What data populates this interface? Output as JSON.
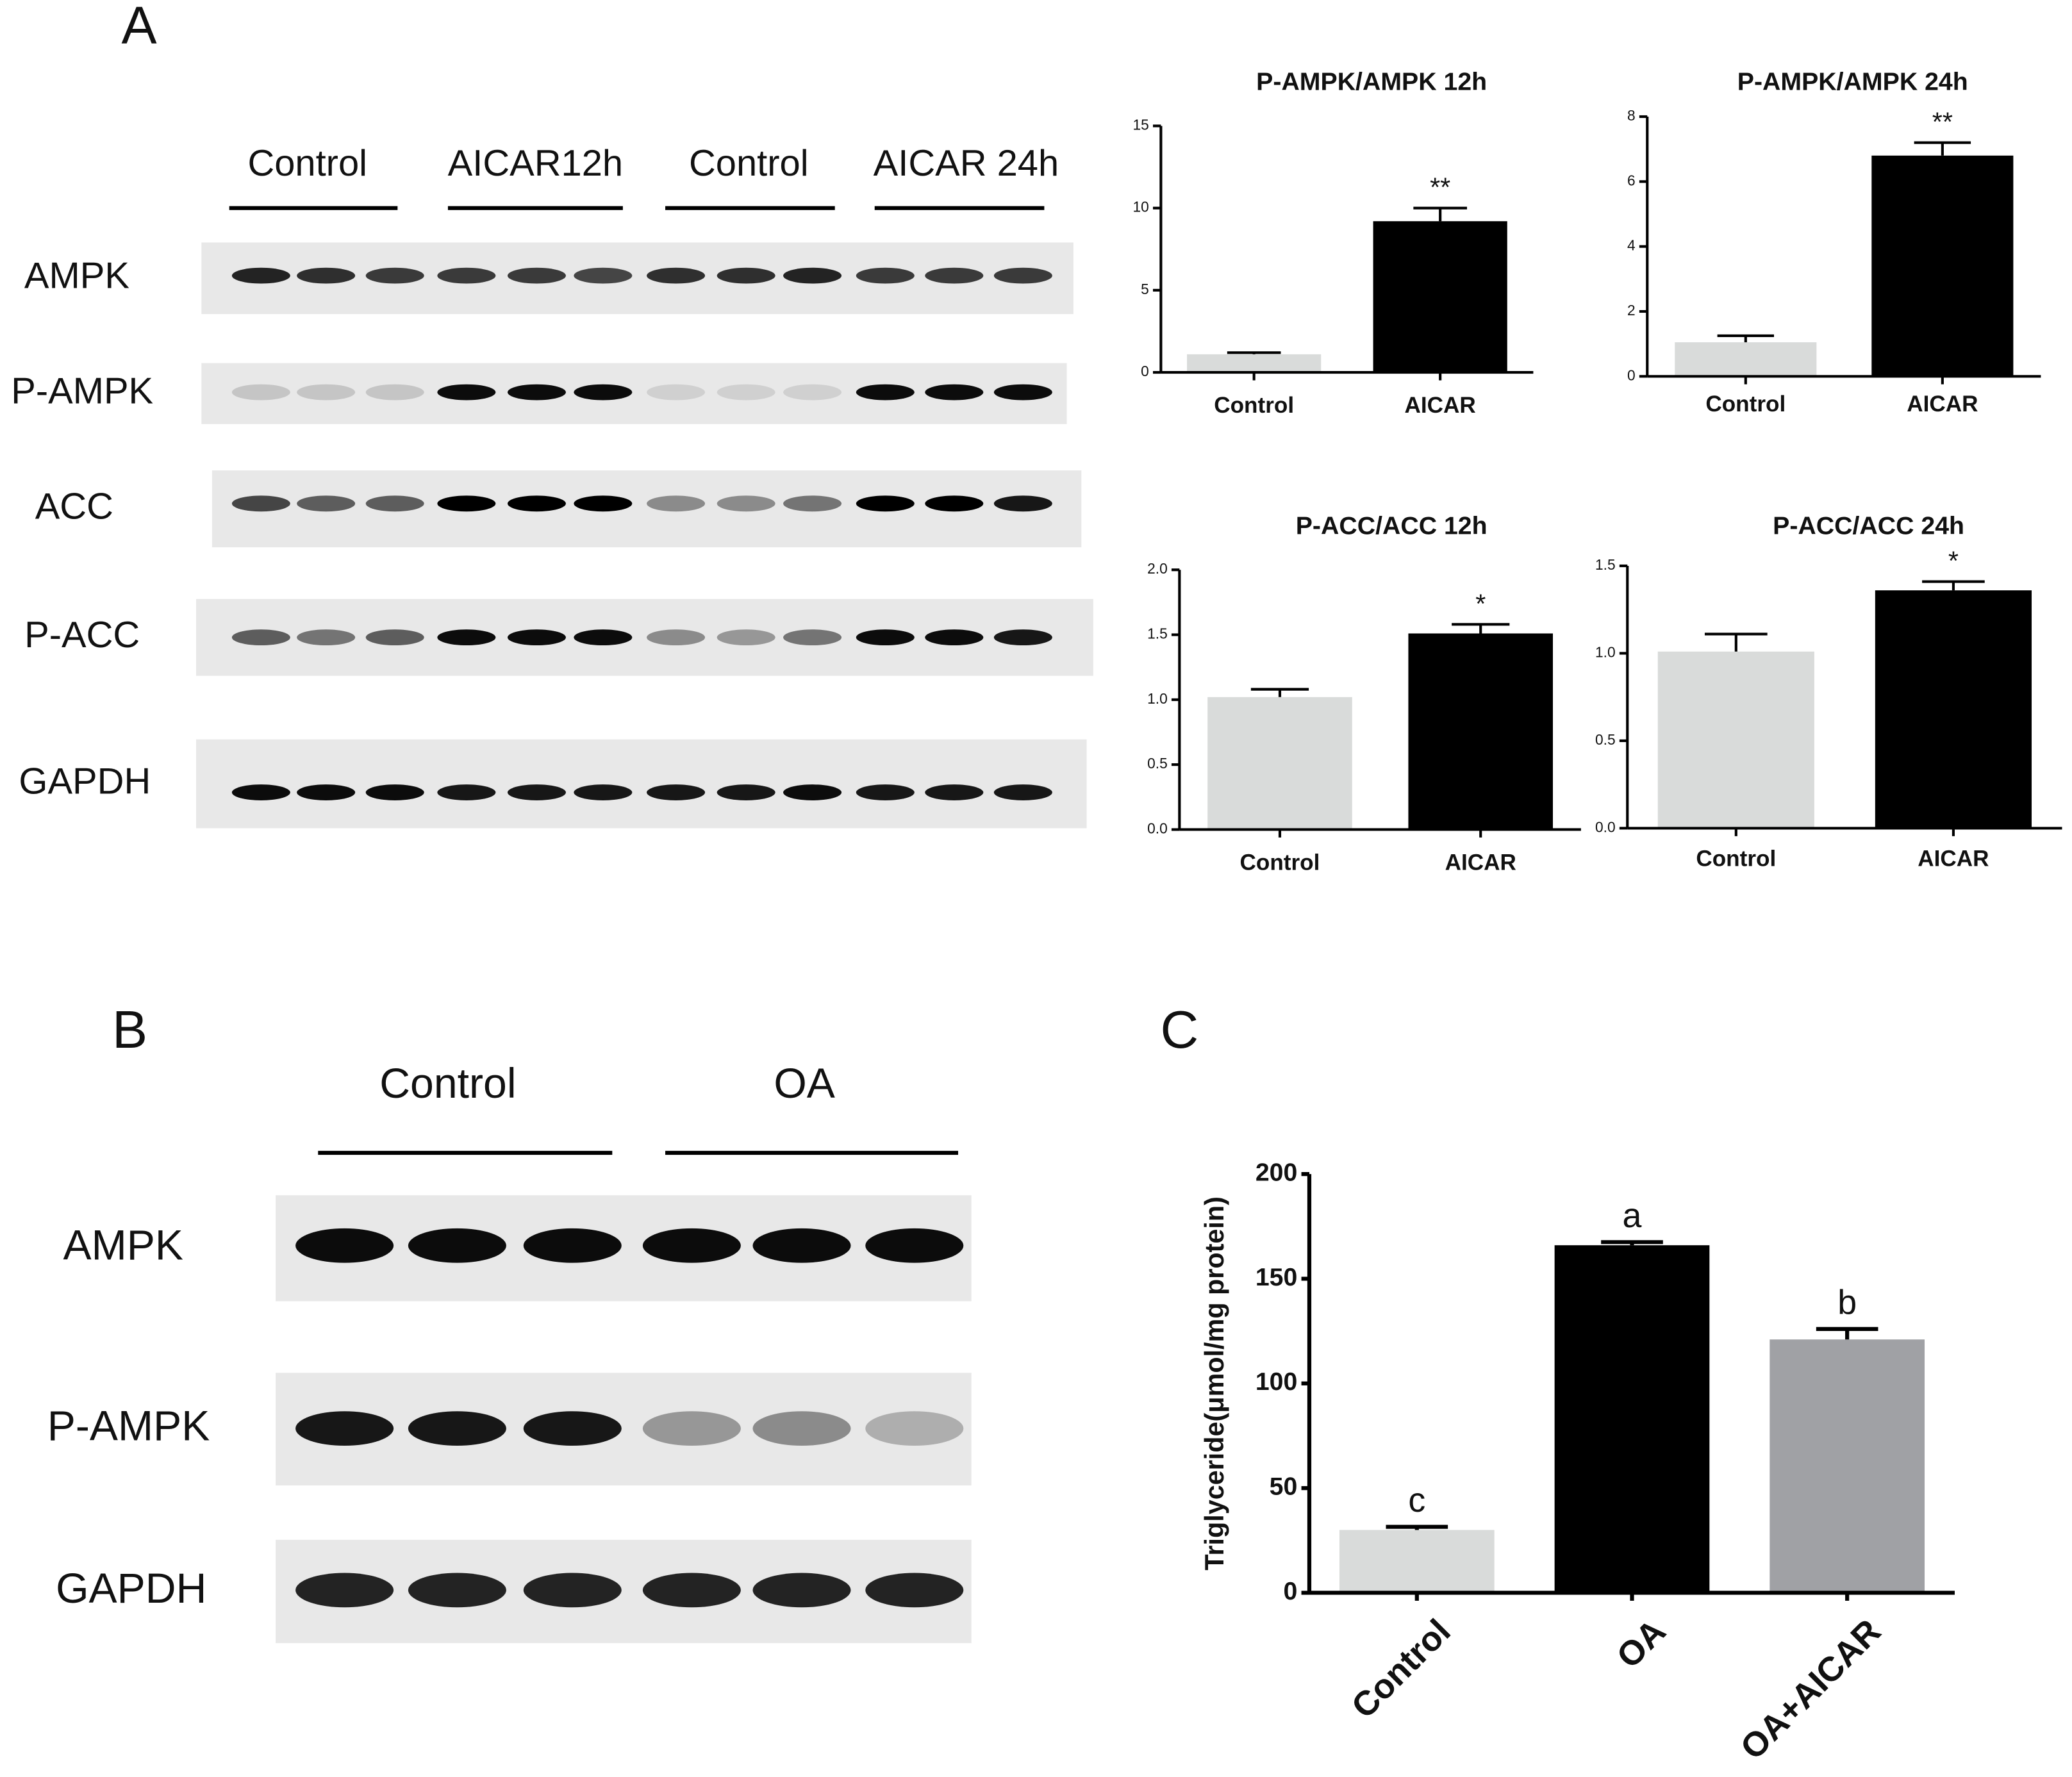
{
  "panel_labels": [
    "A",
    "B",
    "C"
  ],
  "blot_a": {
    "groups": [
      "Control",
      "AICAR12h",
      "Control",
      "AICAR 24h"
    ],
    "proteins": [
      "AMPK",
      "P-AMPK",
      "ACC",
      "P-ACC",
      "GAPDH"
    ]
  },
  "blot_b": {
    "groups": [
      "Control",
      "OA"
    ],
    "proteins": [
      "AMPK",
      "P-AMPK",
      "GAPDH"
    ]
  },
  "chart_data": [
    {
      "type": "bar",
      "title": "P-AMPK/AMPK 12h",
      "categories": [
        "Control",
        "AICAR"
      ],
      "values": [
        1.1,
        9.2
      ],
      "errors": [
        0.1,
        0.8
      ],
      "colors": [
        "#d9dbda",
        "#000000"
      ],
      "significance": [
        null,
        "**"
      ],
      "ylim": [
        0,
        15
      ],
      "yticks": [
        0,
        5,
        10,
        15
      ]
    },
    {
      "type": "bar",
      "title": "P-AMPK/AMPK 24h",
      "categories": [
        "Control",
        "AICAR"
      ],
      "values": [
        1.05,
        6.8
      ],
      "errors": [
        0.2,
        0.4
      ],
      "colors": [
        "#d9dbda",
        "#000000"
      ],
      "significance": [
        null,
        "**"
      ],
      "ylim": [
        0,
        8
      ],
      "yticks": [
        0,
        2,
        4,
        6,
        8
      ]
    },
    {
      "type": "bar",
      "title": "P-ACC/ACC 12h",
      "categories": [
        "Control",
        "AICAR"
      ],
      "values": [
        1.02,
        1.51
      ],
      "errors": [
        0.06,
        0.07
      ],
      "colors": [
        "#d9dbda",
        "#000000"
      ],
      "significance": [
        null,
        "*"
      ],
      "ylim": [
        0,
        2
      ],
      "yticks": [
        {
          "value": 0,
          "label": "0.0"
        },
        0.5,
        {
          "value": 1,
          "label": "1.0"
        },
        1.5,
        {
          "value": 2,
          "label": "2.0"
        }
      ]
    },
    {
      "type": "bar",
      "title": "P-ACC/ACC 24h",
      "categories": [
        "Control",
        "AICAR"
      ],
      "values": [
        1.01,
        1.36
      ],
      "errors": [
        0.1,
        0.05
      ],
      "colors": [
        "#d9dbda",
        "#000000"
      ],
      "significance": [
        null,
        "*"
      ],
      "ylim": [
        0,
        1.5
      ],
      "yticks": [
        {
          "value": 0,
          "label": "0.0"
        },
        0.5,
        {
          "value": 1,
          "label": "1.0"
        },
        1.5
      ]
    },
    {
      "type": "bar",
      "ylabel": "Triglyceride(μmol/mg protein)",
      "categories": [
        "Control",
        "OA",
        "OA+AICAR"
      ],
      "values": [
        30,
        166,
        121
      ],
      "errors": [
        1.5,
        1.5,
        5
      ],
      "colors": [
        "#d9dbda",
        "#000000",
        "#a0a1a5"
      ],
      "significance": [
        "c",
        "a",
        "b"
      ],
      "ylim": [
        0,
        200
      ],
      "yticks": [
        0,
        50,
        100,
        150,
        200
      ]
    }
  ]
}
